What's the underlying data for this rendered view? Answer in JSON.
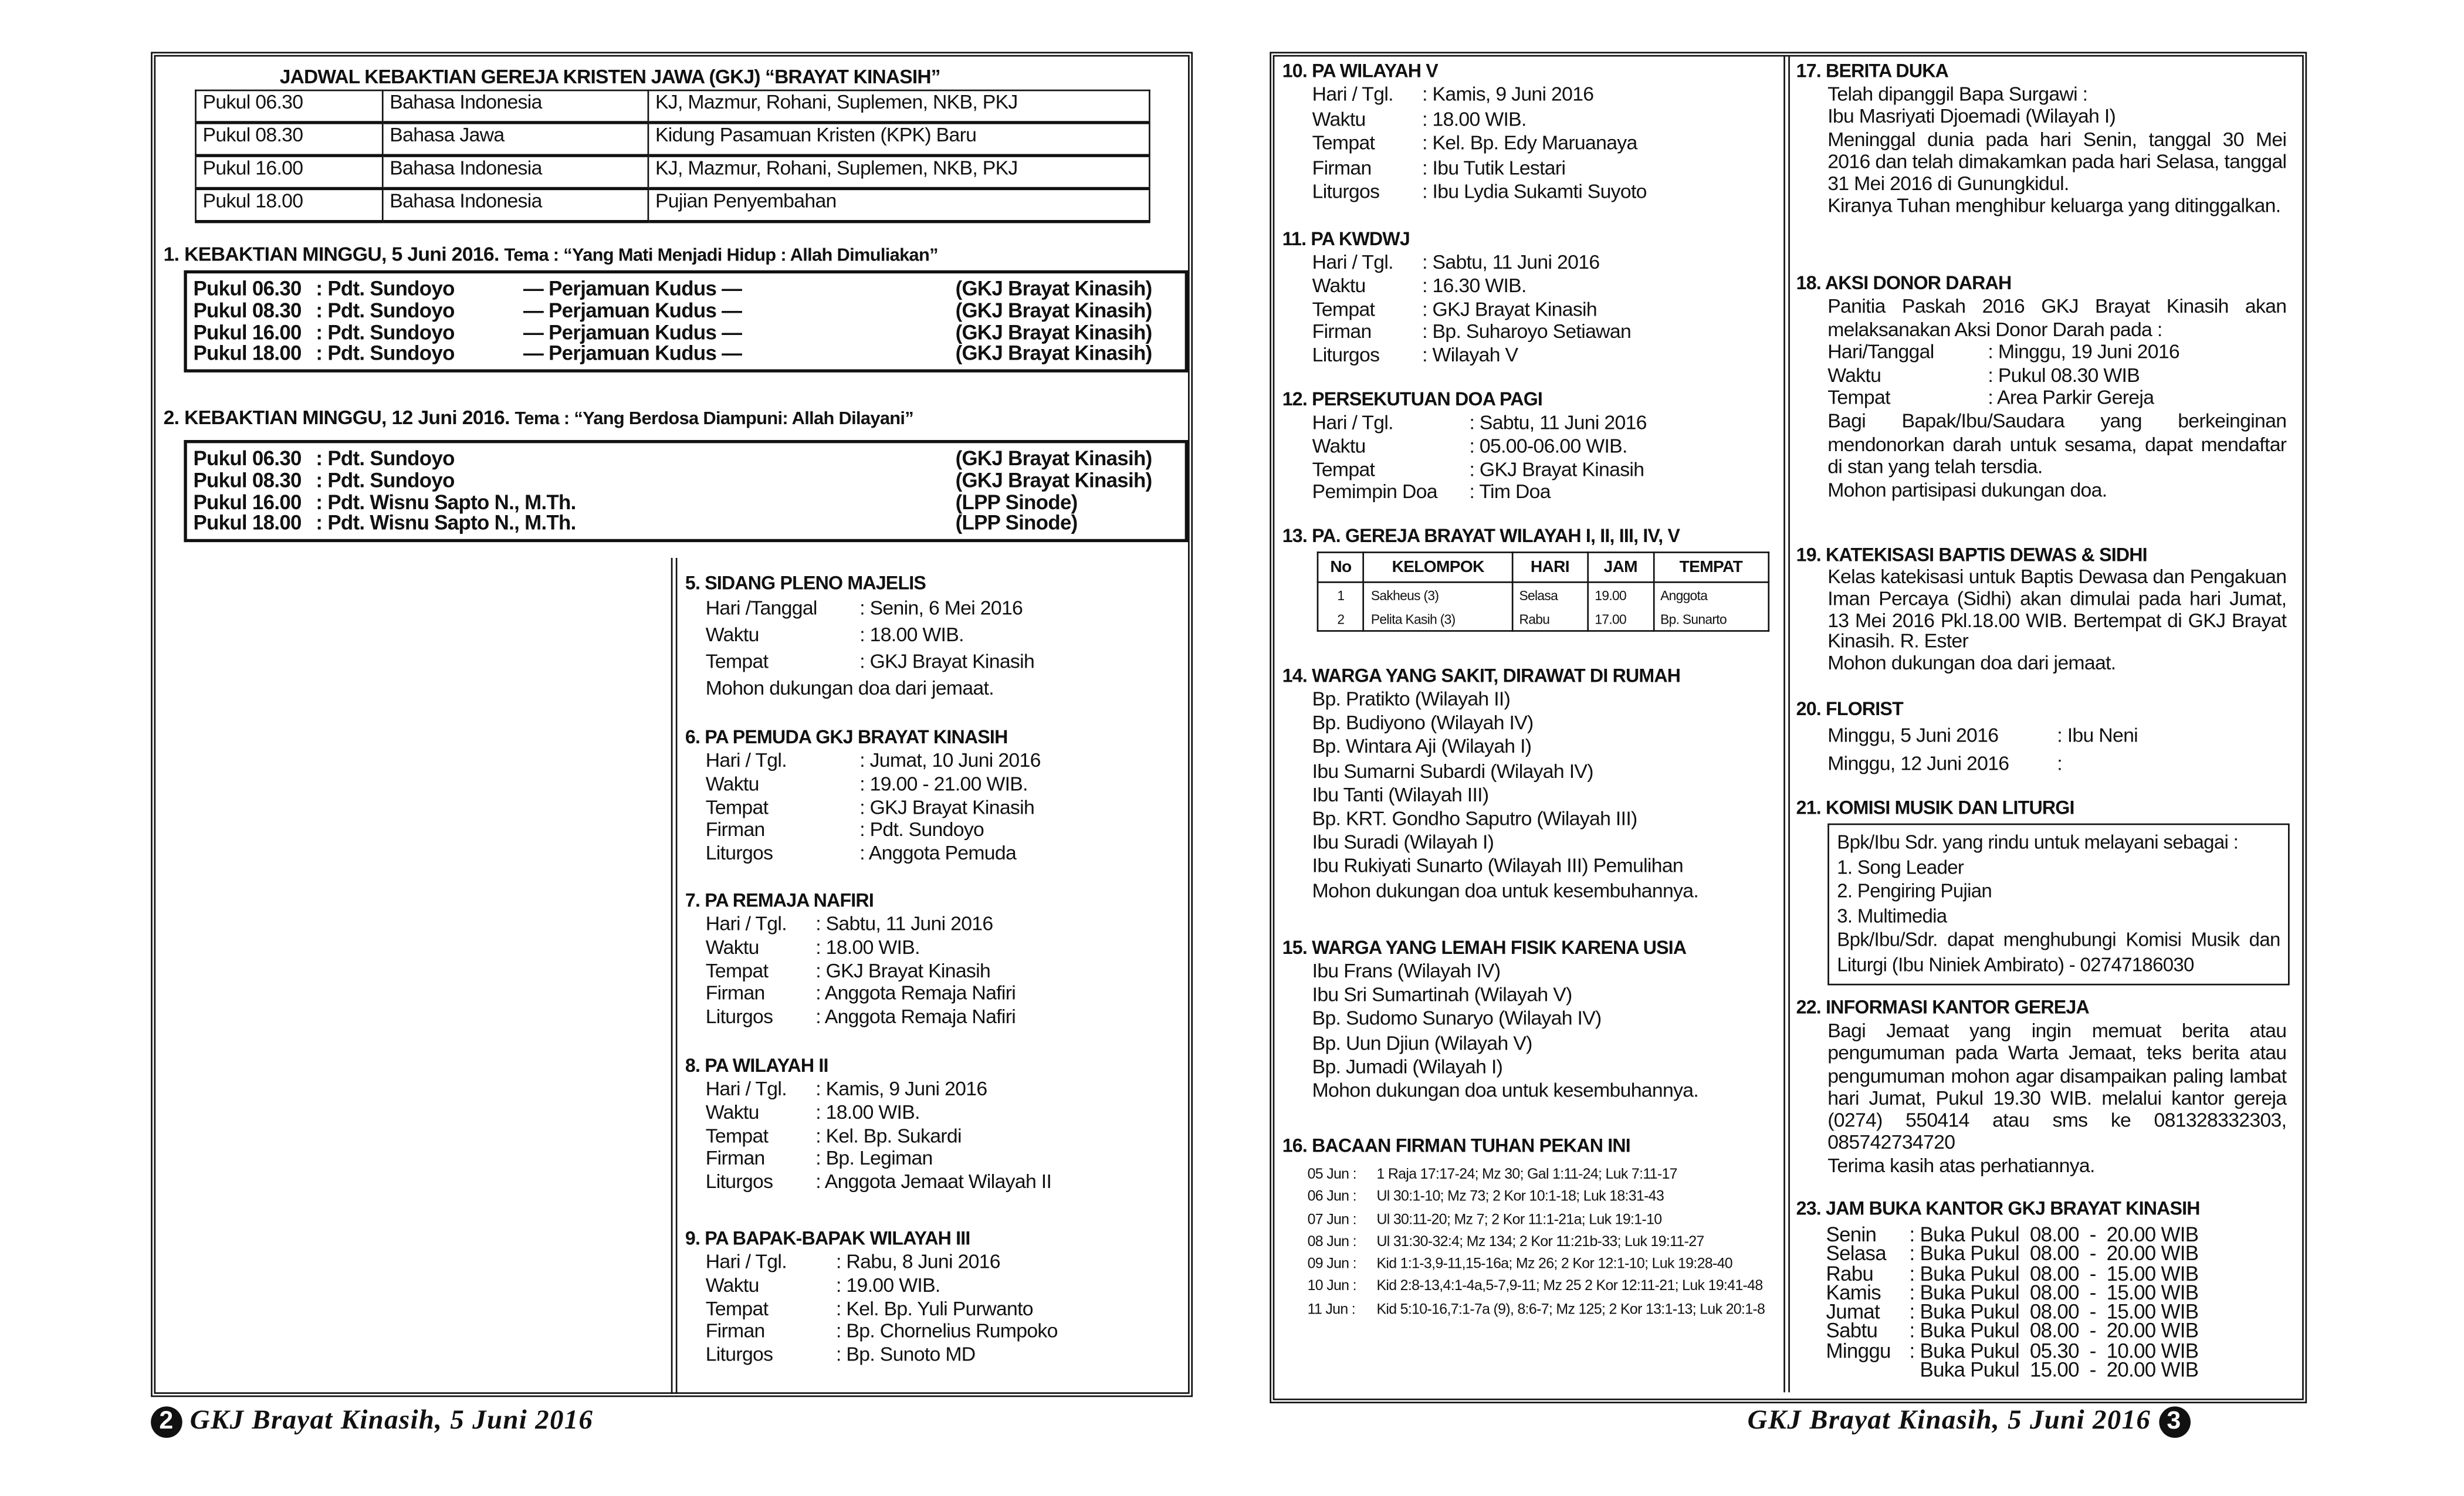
{
  "left_page": {
    "schedule": {
      "title": "JADWAL KEBAKTIAN GEREJA KRISTEN JAWA  (GKJ) “BRAYAT KINASIH”",
      "rows": [
        [
          "Pukul 06.30",
          "Bahasa Indonesia",
          "KJ, Mazmur,  Rohani,  Suplemen, NKB, PKJ"
        ],
        [
          "Pukul 08.30",
          "Bahasa Jawa",
          "Kidung Pasamuan Kristen (KPK) Baru"
        ],
        [
          "Pukul 16.00",
          "Bahasa Indonesia",
          "KJ, Mazmur,  Rohani,  Suplemen, NKB, PKJ"
        ],
        [
          "Pukul 18.00",
          "Bahasa Indonesia",
          "Pujian Penyembahan"
        ]
      ]
    },
    "services": [
      {
        "heading": "1. KEBAKTIAN MINGGU, 5 Juni 2016.",
        "tema": "Tema : “Yang Mati Menjadi Hidup : Allah Dimuliakan”",
        "rows": [
          [
            "Pukul 06.30",
            ": Pdt. Sundoyo",
            "— Perjamuan Kudus —",
            "(GKJ Brayat Kinasih)"
          ],
          [
            "Pukul 08.30",
            ": Pdt. Sundoyo",
            "— Perjamuan Kudus —",
            "(GKJ Brayat Kinasih)"
          ],
          [
            "Pukul 16.00",
            ": Pdt. Sundoyo",
            "— Perjamuan Kudus —",
            "(GKJ Brayat Kinasih)"
          ],
          [
            "Pukul 18.00",
            ": Pdt. Sundoyo",
            "— Perjamuan Kudus —",
            "(GKJ Brayat Kinasih)"
          ]
        ]
      },
      {
        "heading": "2. KEBAKTIAN MINGGU, 12 Juni 2016.",
        "tema": "Tema : “Yang Berdosa Diampuni: Allah Dilayani”",
        "rows": [
          [
            "Pukul 06.30",
            ": Pdt. Sundoyo",
            "",
            "(GKJ Brayat Kinasih)"
          ],
          [
            "Pukul 08.30",
            ": Pdt. Sundoyo",
            "",
            "(GKJ Brayat Kinasih)"
          ],
          [
            "Pukul 16.00",
            ": Pdt. Wisnu Sapto N., M.Th.",
            "",
            "(LPP Sinode)"
          ],
          [
            "Pukul 18.00",
            ": Pdt. Wisnu Sapto N., M.Th.",
            "",
            "(LPP Sinode)"
          ]
        ]
      }
    ],
    "sections": [
      {
        "heading": "5. SIDANG PLENO MAJELIS",
        "content": [
          [
            "Hari /Tanggal",
            "Senin, 6 Mei 2016"
          ],
          [
            "Waktu",
            "18.00 WIB."
          ],
          [
            "Tempat",
            "GKJ Brayat Kinasih"
          ],
          "Mohon dukungan doa dari jemaat."
        ]
      },
      {
        "heading": "6. PA PEMUDA GKJ BRAYAT KINASIH",
        "content": [
          [
            "Hari / Tgl.",
            "Jumat, 10 Juni 2016"
          ],
          [
            "Waktu",
            "19.00 - 21.00 WIB."
          ],
          [
            "Tempat",
            "GKJ Brayat Kinasih"
          ],
          [
            "Firman",
            "Pdt. Sundoyo"
          ],
          [
            "Liturgos",
            "Anggota Pemuda"
          ]
        ]
      },
      {
        "heading": "7. PA REMAJA NAFIRI",
        "content": [
          [
            "Hari / Tgl.",
            "Sabtu, 11 Juni 2016"
          ],
          [
            "Waktu",
            "18.00 WIB."
          ],
          [
            "Tempat",
            "GKJ Brayat Kinasih"
          ],
          [
            "Firman",
            "Anggota Remaja Nafiri"
          ],
          [
            "Liturgos",
            "Anggota Remaja Nafiri"
          ]
        ]
      },
      {
        "heading": "8. PA WILAYAH II",
        "content": [
          [
            "Hari / Tgl.",
            "Kamis, 9 Juni 2016"
          ],
          [
            "Waktu",
            "18.00 WIB."
          ],
          [
            "Tempat",
            "Kel. Bp. Sukardi"
          ],
          [
            "Firman",
            "Bp. Legiman"
          ],
          [
            "Liturgos",
            "Anggota Jemaat Wilayah II"
          ]
        ]
      },
      {
        "heading": "9. PA BAPAK-BAPAK WILAYAH III",
        "content": [
          [
            "Hari / Tgl.",
            "Rabu, 8 Juni 2016"
          ],
          [
            "Waktu",
            "19.00 WIB."
          ],
          [
            "Tempat",
            "Kel. Bp. Yuli Purwanto"
          ],
          [
            "Firman",
            "Bp. Chornelius Rumpoko"
          ],
          [
            "Liturgos",
            "Bp. Sunoto MD"
          ]
        ]
      }
    ]
  },
  "right_page": {
    "sections": [
      {
        "heading": "10. PA WILAYAH V",
        "content": [
          [
            "Hari / Tgl.",
            "Kamis, 9 Juni 2016"
          ],
          [
            "Waktu",
            "18.00 WIB."
          ],
          [
            "Tempat",
            "Kel. Bp. Edy Maruanaya"
          ],
          [
            "Firman",
            "Ibu Tutik Lestari"
          ],
          [
            "Liturgos",
            "Ibu Lydia Sukamti Suyoto"
          ]
        ]
      },
      {
        "heading": "11. PA KWDWJ",
        "content": [
          [
            "Hari / Tgl.",
            "Sabtu, 11 Juni 2016"
          ],
          [
            "Waktu",
            "16.30 WIB."
          ],
          [
            "Tempat",
            "GKJ Brayat Kinasih"
          ],
          [
            "Firman",
            "Bp. Suharoyo Setiawan"
          ],
          [
            "Liturgos",
            "Wilayah V"
          ]
        ]
      },
      {
        "heading": "12. PERSEKUTUAN DOA PAGI",
        "content": [
          [
            "Hari / Tgl.",
            "Sabtu, 11 Juni 2016"
          ],
          [
            "Waktu",
            "05.00-06.00 WIB."
          ],
          [
            "Tempat",
            "GKJ Brayat Kinasih"
          ],
          [
            "Pemimpin Doa",
            "Tim Doa"
          ]
        ]
      },
      {
        "heading": "13. PA. GEREJA BRAYAT WILAYAH I, II, III, IV, V",
        "table": {
          "columns": [
            "No",
            "KELOMPOK",
            "HARI",
            "JAM",
            "TEMPAT"
          ],
          "rows": [
            [
              "1",
              "Sakheus (3)",
              "Selasa",
              "19.00",
              "Anggota"
            ],
            [
              "2",
              "Pelita Kasih (3)",
              "Rabu",
              "17.00",
              "Bp. Sunarto"
            ]
          ]
        }
      },
      {
        "heading": "14. WARGA YANG SAKIT, DIRAWAT DI RUMAH",
        "content": [
          "Bp. Pratikto (Wilayah II)",
          "Bp. Budiyono (Wilayah IV)",
          "Bp. Wintara Aji (Wilayah I)",
          "Ibu Sumarni Subardi (Wilayah IV)",
          "Ibu Tanti (Wilayah III)",
          "Bp. KRT. Gondho Saputro (Wilayah III)",
          "Ibu Suradi (Wilayah I)",
          "Ibu Rukiyati Sunarto (Wilayah III) Pemulihan",
          "Mohon dukungan doa untuk kesembuhannya."
        ]
      },
      {
        "heading": "15. WARGA YANG LEMAH FISIK KARENA USIA",
        "content": [
          "Ibu Frans (Wilayah IV)",
          "Ibu Sri Sumartinah (Wilayah V)",
          "Bp. Sudomo Sunaryo (Wilayah IV)",
          "Bp. Uun Djiun (Wilayah V)",
          "Bp. Jumadi (Wilayah I)",
          "Mohon dukungan doa untuk kesembuhannya."
        ]
      },
      {
        "heading": "16. BACAAN FIRMAN TUHAN PEKAN INI",
        "readings": [
          [
            "05 Jun",
            "1 Raja 17:17-24; Mz 30; Gal 1:11-24; Luk 7:11-17"
          ],
          [
            "06 Jun",
            "Ul 30:1-10; Mz 73; 2 Kor 10:1-18; Luk 18:31-43"
          ],
          [
            "07 Jun",
            "Ul 30:11-20; Mz 7; 2 Kor 11:1-21a; Luk 19:1-10"
          ],
          [
            "08 Jun",
            "Ul 31:30-32:4; Mz 134; 2 Kor 11:21b-33; Luk 19:11-27"
          ],
          [
            "09 Jun",
            "Kid 1:1-3,9-11,15-16a; Mz 26; 2 Kor 12:1-10; Luk 19:28-40"
          ],
          [
            "10 Jun",
            "Kid 2:8-13,4:1-4a,5-7,9-11; Mz 25 2 Kor 12:11-21; Luk 19:41-48"
          ],
          [
            "11 Jun",
            "Kid 5:10-16,7:1-7a (9), 8:6-7; Mz 125; 2 Kor 13:1-13; Luk 20:1-8"
          ]
        ]
      },
      {
        "heading": "17. BERITA DUKA",
        "content": [
          "Telah dipanggil Bapa Surgawi :",
          "Ibu Masriyati Djoemadi (Wilayah I)",
          "Meninggal dunia pada hari Senin, tanggal 30 Mei 2016 dan telah dimakamkan pada hari Selasa, tanggal 31 Mei 2016 di Gunungkidul.",
          "Kiranya Tuhan menghibur keluarga yang ditinggalkan."
        ]
      },
      {
        "heading": "18. AKSI DONOR DARAH",
        "content": [
          "Panitia Paskah 2016 GKJ Brayat Kinasih akan melaksanakan Aksi Donor Darah pada :",
          [
            "Hari/Tanggal",
            "Minggu, 19 Juni 2016"
          ],
          [
            "Waktu",
            "Pukul 08.30 WIB"
          ],
          [
            "Tempat",
            "Area Parkir Gereja"
          ],
          "Bagi Bapak/Ibu/Saudara yang berkeinginan mendonorkan darah untuk sesama, dapat mendaftar di stan yang telah tersdia.",
          "Mohon partisipasi dukungan doa."
        ]
      },
      {
        "heading": "19. KATEKISASI BAPTIS DEWAS & SIDHI",
        "content": [
          "Kelas katekisasi untuk Baptis  Dewasa dan Pengakuan Iman Percaya (Sidhi) akan dimulai pada hari Jumat, 13 Mei 2016 Pkl.18.00 WIB. Bertempat di GKJ Brayat Kinasih. R. Ester",
          "Mohon dukungan doa dari jemaat."
        ]
      },
      {
        "heading": "20. FLORIST",
        "content": [
          [
            "Minggu, 5 Juni 2016",
            "Ibu Neni"
          ],
          [
            "Minggu, 12 Juni 2016",
            ""
          ]
        ]
      },
      {
        "heading": "21. KOMISI MUSIK DAN LITURGI",
        "box": [
          "Bpk/Ibu Sdr. yang rindu untuk melayani sebagai :",
          "1. Song Leader",
          "2. Pengiring Pujian",
          "3. Multimedia",
          "Bpk/Ibu/Sdr. dapat menghubungi Komisi Musik dan Liturgi (Ibu Niniek Ambirato) - 02747186030"
        ]
      },
      {
        "heading": "22. INFORMASI KANTOR GEREJA",
        "content": [
          "Bagi Jemaat yang ingin memuat berita atau pengumuman pada Warta Jemaat, teks berita atau pengumuman mohon agar disampaikan paling lambat hari Jumat, Pukul 19.30 WIB. melalui kantor gereja (0274) 550414 atau sms ke 081328332303, 085742734720",
          "Terima kasih atas perhatiannya."
        ]
      },
      {
        "heading": "23. JAM BUKA KANTOR GKJ BRAYAT KINASIH",
        "hours": [
          [
            "Senin",
            ": Buka Pukul  08.00  -  20.00 WIB"
          ],
          [
            "Selasa",
            ": Buka Pukul  08.00  -  20.00 WIB"
          ],
          [
            "Rabu",
            ": Buka Pukul  08.00  -  15.00 WIB"
          ],
          [
            "Kamis",
            ": Buka Pukul  08.00  -  15.00 WIB"
          ],
          [
            "Jumat",
            ": Buka Pukul  08.00  -  15.00 WIB"
          ],
          [
            "Sabtu",
            ": Buka Pukul  08.00  -  20.00 WIB"
          ],
          [
            "Minggu",
            ": Buka Pukul  05.30  -  10.00 WIB"
          ],
          [
            "",
            "  Buka Pukul  15.00  -  20.00 WIB"
          ]
        ]
      }
    ]
  },
  "footer": {
    "left_page_number": "2",
    "right_page_number": "3",
    "left_text": "GKJ Brayat Kinasih, 5 Juni 2016",
    "right_text": "GKJ Brayat Kinasih, 5 Juni 2016"
  }
}
